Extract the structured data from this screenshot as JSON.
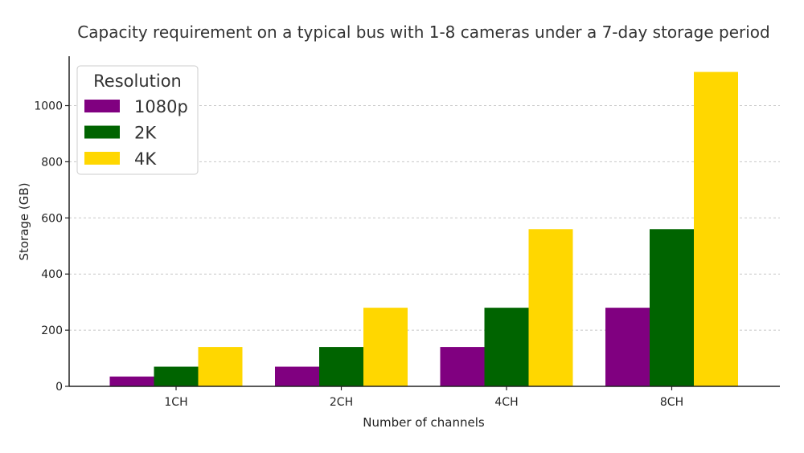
{
  "chart_data": {
    "type": "bar",
    "title": "Capacity requirement on a typical bus with 1-8 cameras under a 7-day storage period",
    "xlabel": "Number of channels",
    "ylabel": "Storage (GB)",
    "categories": [
      "1CH",
      "2CH",
      "4CH",
      "8CH"
    ],
    "series": [
      {
        "name": "1080p",
        "color": "#800080",
        "values": [
          35,
          70,
          140,
          280
        ]
      },
      {
        "name": "2K",
        "color": "#006400",
        "values": [
          70,
          140,
          280,
          560
        ]
      },
      {
        "name": "4K",
        "color": "#FFD700",
        "values": [
          140,
          280,
          560,
          1120
        ]
      }
    ],
    "yticks": [
      0,
      200,
      400,
      600,
      800,
      1000
    ],
    "ylim": [
      0,
      1176
    ],
    "grid": "horizontal dashed",
    "legend": {
      "title": "Resolution",
      "position": "top-left"
    }
  }
}
